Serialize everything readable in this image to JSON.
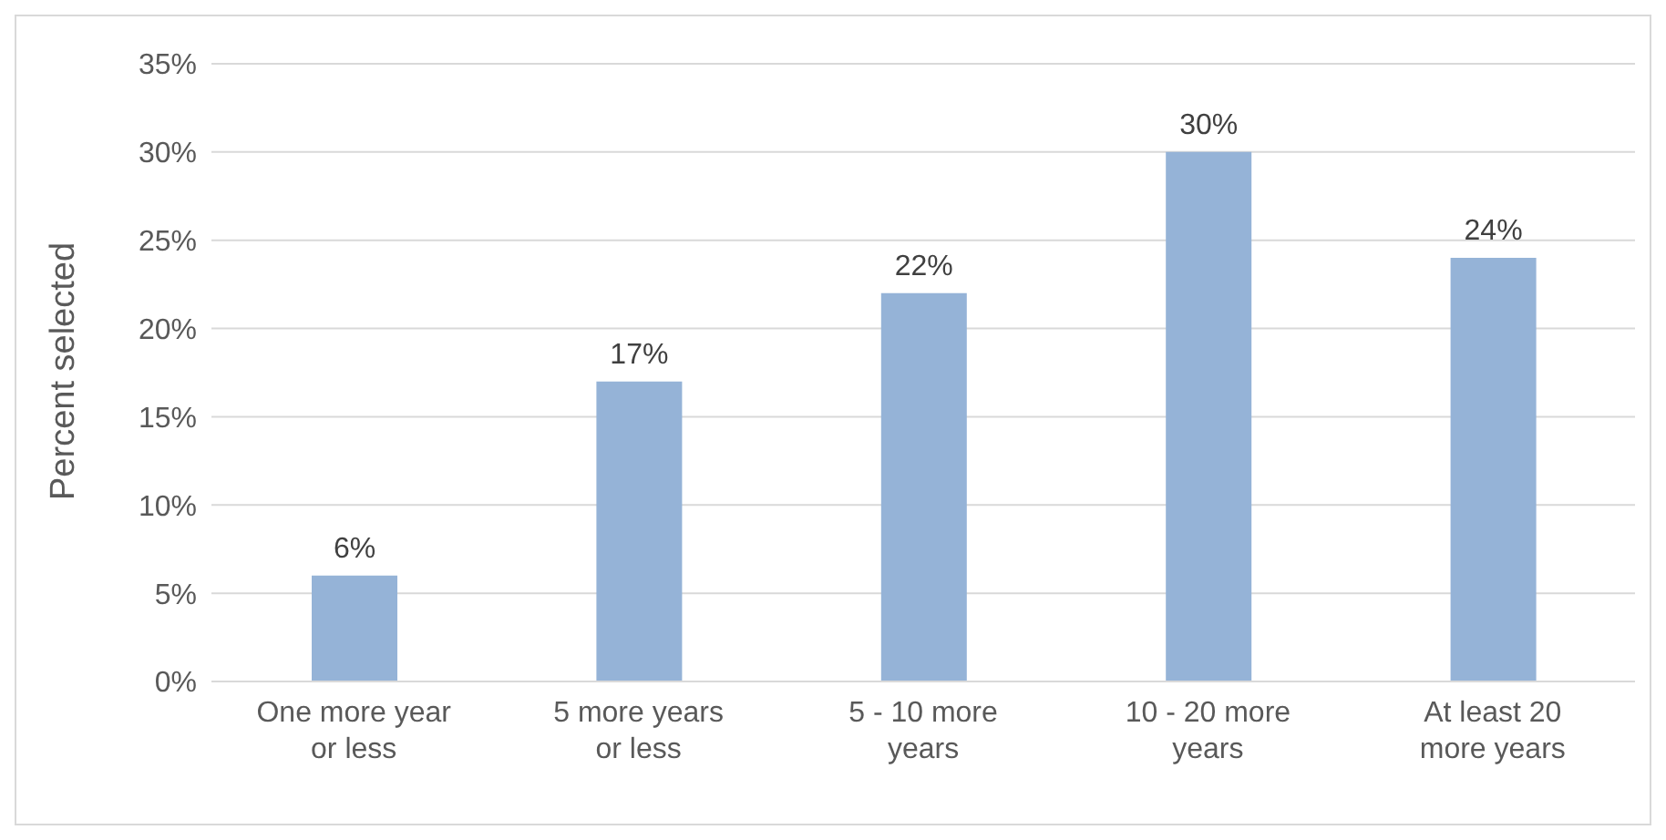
{
  "chart_data": {
    "type": "bar",
    "ylabel": "Percent selected",
    "categories": [
      "One more year or less",
      "5 more years or less",
      "5 - 10 more years",
      "10 - 20 more years",
      "At least 20 more years"
    ],
    "values": [
      6,
      17,
      22,
      30,
      24
    ],
    "value_labels": [
      "6%",
      "17%",
      "22%",
      "30%",
      "24%"
    ],
    "color": "#95b3d7",
    "ylim": [
      0,
      35
    ],
    "yticks": [
      {
        "value": 0,
        "label": "0%"
      },
      {
        "value": 5,
        "label": "5%"
      },
      {
        "value": 10,
        "label": "10%"
      },
      {
        "value": 15,
        "label": "15%"
      },
      {
        "value": 20,
        "label": "20%"
      },
      {
        "value": 25,
        "label": "25%"
      },
      {
        "value": 30,
        "label": "30%"
      },
      {
        "value": 35,
        "label": "35%"
      }
    ],
    "grid": "y"
  }
}
